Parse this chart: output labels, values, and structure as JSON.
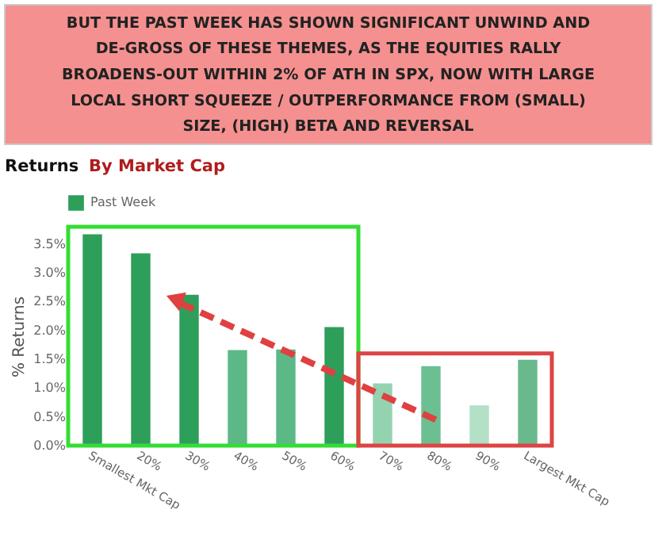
{
  "chart_data": {
    "type": "bar",
    "title": "BUT THE PAST WEEK HAS SHOWN SIGNIFICANT UNWIND AND\nDE-GROSS OF THESE THEMES, AS THE EQUITIES RALLY\nBROADENS-OUT WITHIN 2% OF ATH IN SPX, NOW WITH LARGE\nLOCAL SHORT SQUEEZE / OUTPERFORMANCE FROM (SMALL)\nSIZE, (HIGH) BETA AND REVERSAL",
    "subtitle": "Returns By Market Cap",
    "ylabel": "% Returns",
    "categories": [
      "Smallest Mkt Cap",
      "20%",
      "30%",
      "40%",
      "50%",
      "60%",
      "70%",
      "80%",
      "90%",
      "Largest Mkt Cap"
    ],
    "series": [
      {
        "name": "Past Week",
        "color": "#2e9e5b",
        "values": [
          3.67,
          3.34,
          2.62,
          1.66,
          1.67,
          2.06,
          1.08,
          1.38,
          0.7,
          1.49
        ],
        "colors": [
          "#2e9e5b",
          "#2e9e5b",
          "#2e9e5b",
          "#5cb887",
          "#5cb887",
          "#2e9e5b",
          "#94d3b0",
          "#6cbf91",
          "#b3e0c6",
          "#6ab98d"
        ]
      }
    ],
    "ylim": [
      0,
      3.8
    ],
    "yticks": [
      {
        "value": 0,
        "label": "0.0%"
      },
      {
        "value": 0.5,
        "label": "0.5%"
      },
      {
        "value": 1,
        "label": "1.0%"
      },
      {
        "value": 1.5,
        "label": "1.5%"
      },
      {
        "value": 2,
        "label": "2.0%"
      },
      {
        "value": 2.5,
        "label": "2.5%"
      },
      {
        "value": 3,
        "label": "3.0%"
      },
      {
        "value": 3.5,
        "label": "3.5%"
      }
    ],
    "grid": false,
    "legend": "top left"
  }
}
